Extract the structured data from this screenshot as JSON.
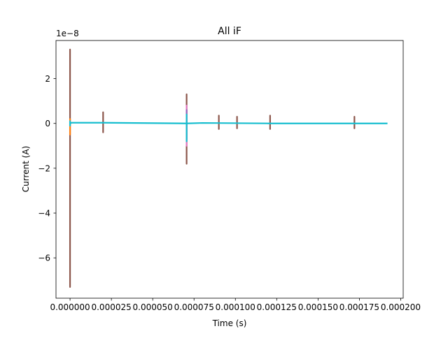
{
  "chart_data": {
    "type": "line",
    "title": "All iF",
    "xlabel": "Time (s)",
    "ylabel": "Current (A)",
    "y_offset_label": "1e−8",
    "y_scale": 1e-08,
    "xlim": [
      -8.5e-06,
      0.0002015
    ],
    "ylim": [
      -7.8e-08,
      3.7e-08
    ],
    "x_ticks": [
      0,
      2.5e-05,
      5e-05,
      7.5e-05,
      0.0001,
      0.000125,
      0.00015,
      0.000175,
      0.0002
    ],
    "x_tick_labels": [
      "0.000000",
      "0.000025",
      "0.000050",
      "0.000075",
      "0.000100",
      "0.000125",
      "0.000150",
      "0.000175",
      "0.000200"
    ],
    "y_ticks": [
      -6e-08,
      -4e-08,
      -2e-08,
      0,
      2e-08
    ],
    "y_tick_labels": [
      "−6",
      "−4",
      "−2",
      "0",
      "2"
    ],
    "grid": false,
    "series": [
      {
        "color": "#8c564b",
        "spikes": [
          {
            "x": 0.0,
            "min": -7.3e-08,
            "max": 3.3e-08
          },
          {
            "x": 2e-05,
            "min": -4e-09,
            "max": 5e-09
          },
          {
            "x": 7.05e-05,
            "min": -1.8e-08,
            "max": 1.3e-08
          },
          {
            "x": 9e-05,
            "min": -2.5e-09,
            "max": 3.5e-09
          },
          {
            "x": 0.000101,
            "min": -2.2e-09,
            "max": 3e-09
          },
          {
            "x": 0.000121,
            "min": -2.5e-09,
            "max": 3.5e-09
          },
          {
            "x": 0.000172,
            "min": -2.2e-09,
            "max": 3e-09
          }
        ]
      },
      {
        "color": "#e377c2",
        "spikes": [
          {
            "x": 7.05e-05,
            "min": -1e-08,
            "max": 8e-09
          }
        ]
      },
      {
        "color": "#9467bd",
        "spikes": [
          {
            "x": 7.05e-05,
            "min": -7e-09,
            "max": 6e-09
          }
        ]
      },
      {
        "color": "#ff7f0e",
        "spikes": [
          {
            "x": 0.0,
            "min": -5e-09,
            "max": 2e-09
          }
        ]
      },
      {
        "color": "#17becf",
        "baseline": [
          {
            "x": 0.0,
            "y": 0.0
          },
          {
            "x": 1e-06,
            "y": 3e-10
          },
          {
            "x": 2e-05,
            "y": 3e-10
          },
          {
            "x": 7.05e-05,
            "y": 0.0
          },
          {
            "x": 8e-05,
            "y": 2e-10
          },
          {
            "x": 0.00012,
            "y": 0.0
          },
          {
            "x": 0.000192,
            "y": 0.0
          }
        ],
        "spikes": [
          {
            "x": 7.05e-05,
            "min": -8e-09,
            "max": 4e-09
          },
          {
            "x": 0.0,
            "min": -1e-09,
            "max": 1e-09
          }
        ]
      }
    ]
  }
}
